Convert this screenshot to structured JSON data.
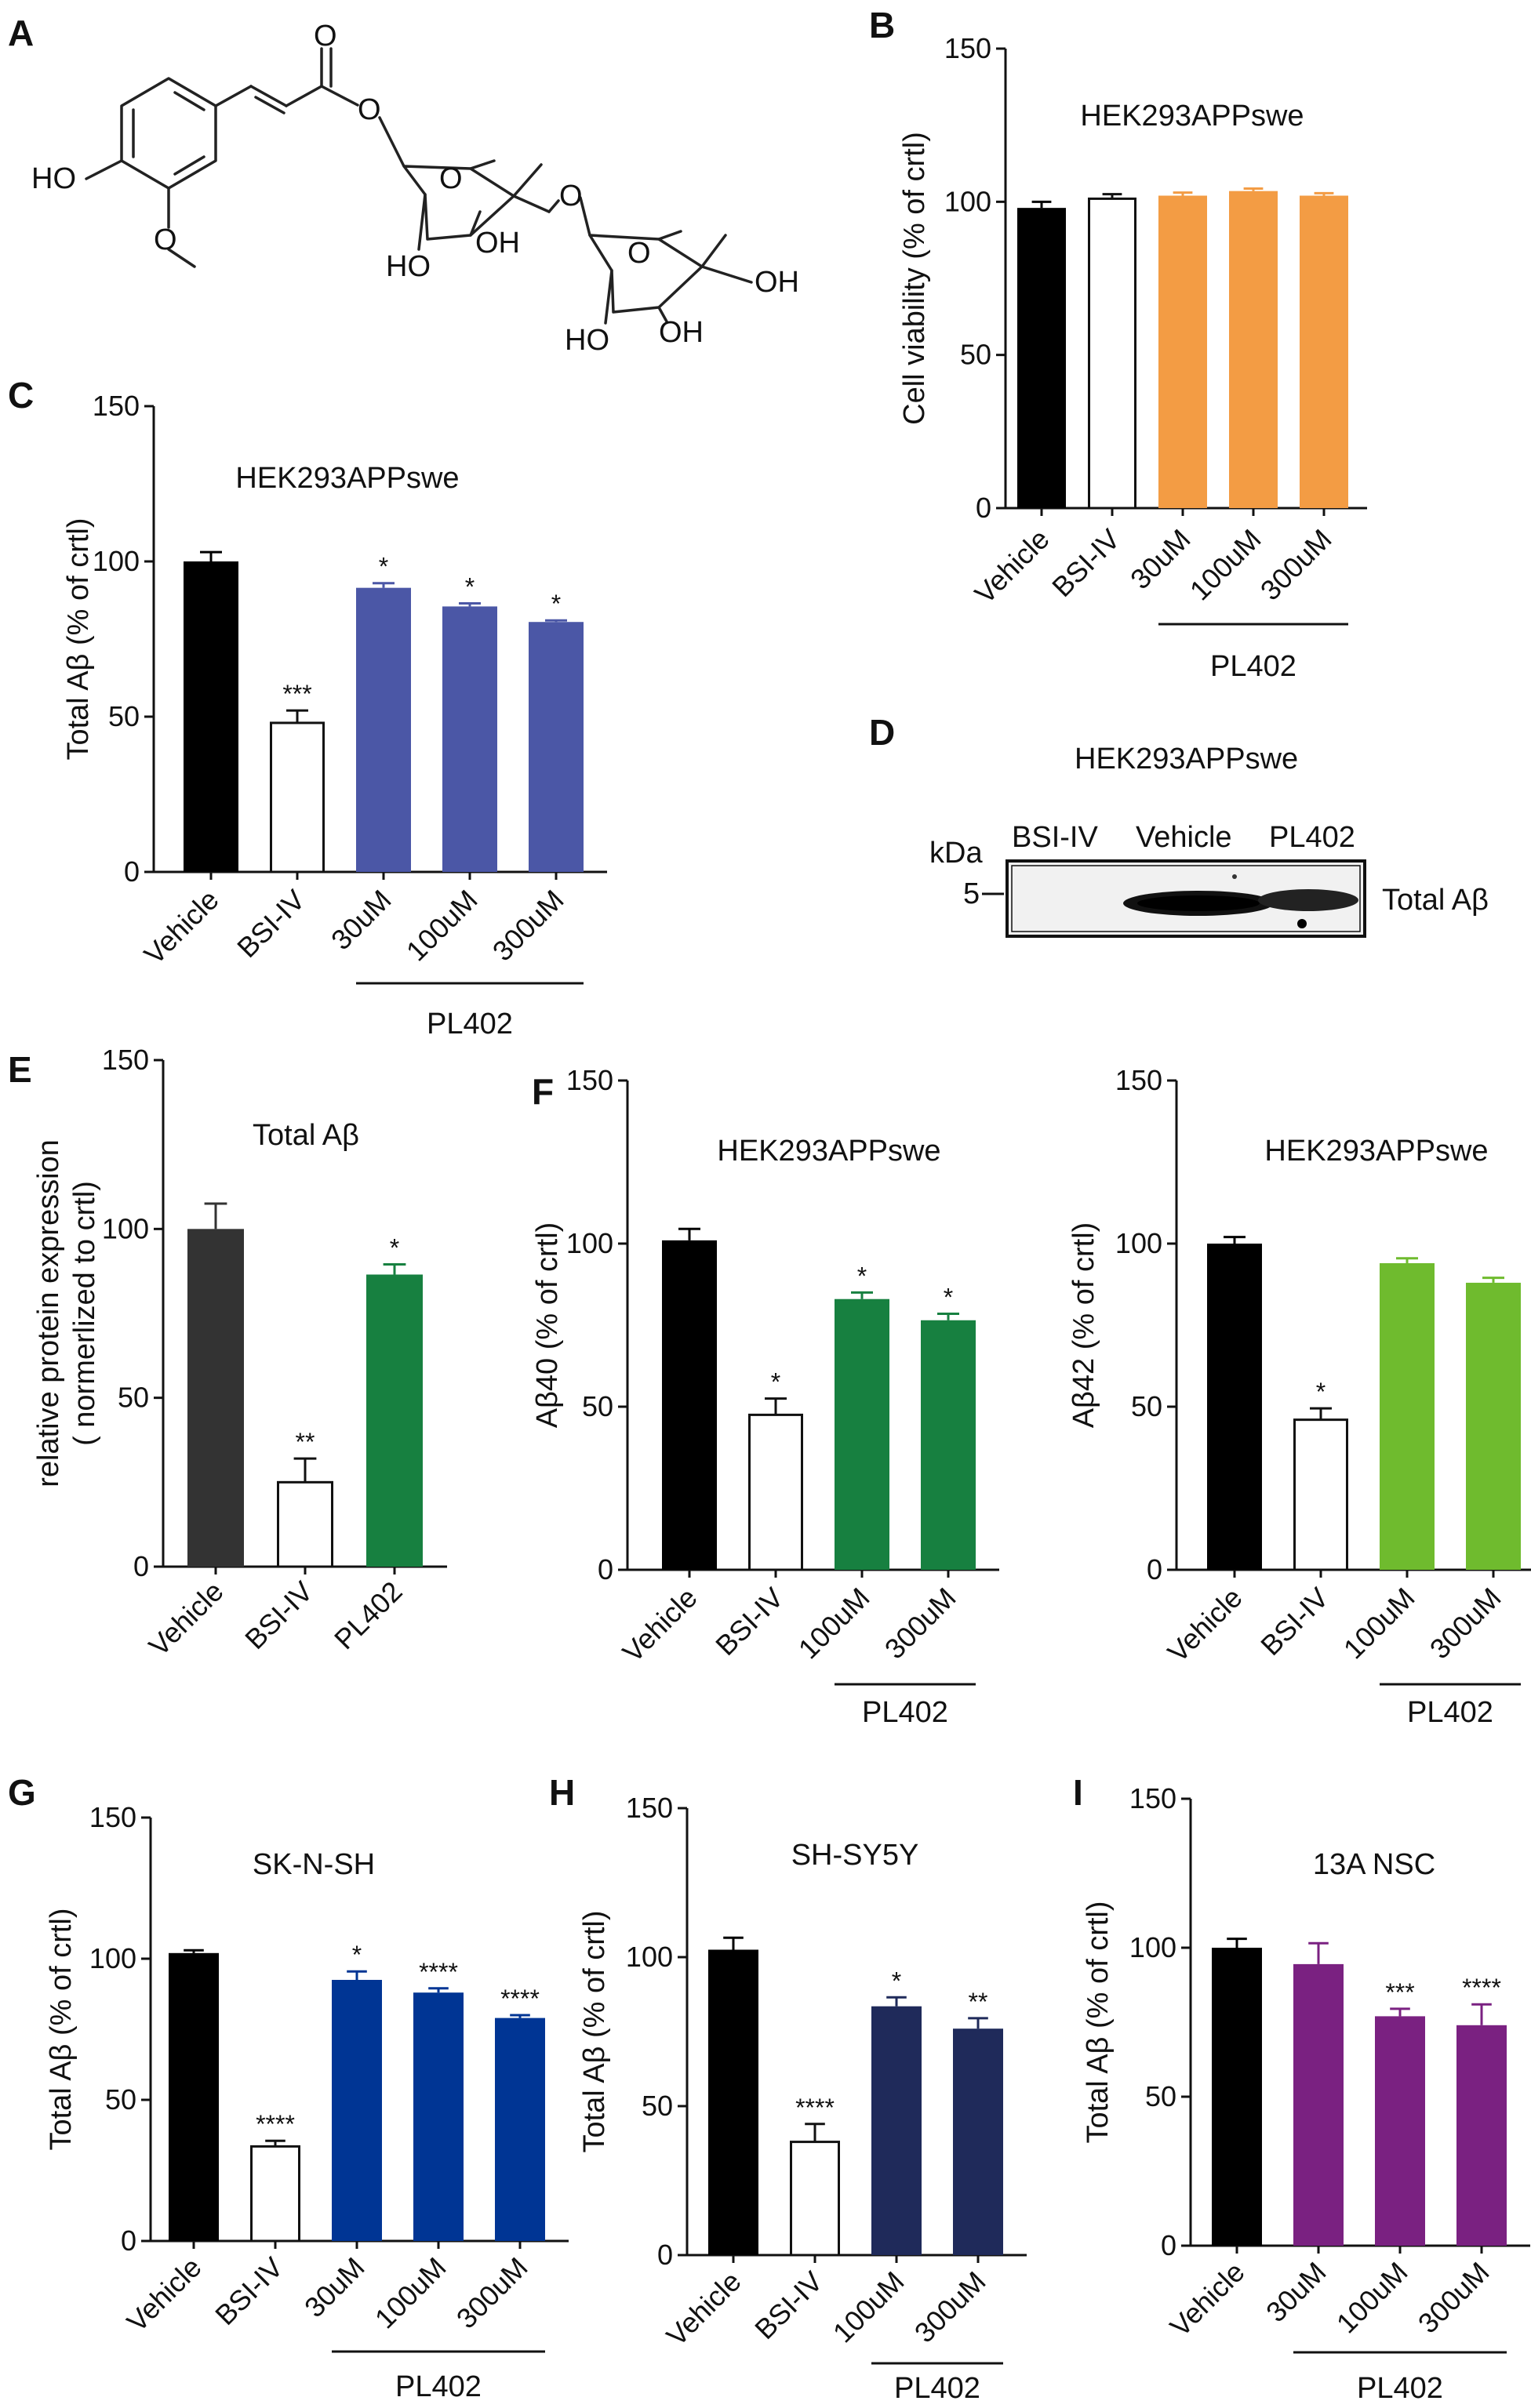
{
  "panel_labels": [
    "A",
    "B",
    "C",
    "D",
    "E",
    "F",
    "G",
    "H",
    "I"
  ],
  "colors": {
    "vehicle": "#000000",
    "orange": "#F39C44",
    "blue_c": "#4B57A6",
    "dark_e": "#333333",
    "green_dark": "#178040",
    "green_light": "#6FBB2E",
    "blue_g": "#003594",
    "navy_h": "#1F2A5A",
    "purple_i": "#7A2181"
  },
  "molecule_labels": {
    "ho1": "HO",
    "ho2": "HO",
    "oh1": "OH",
    "oh2": "OH",
    "oh3": "OH",
    "ho3": "HO",
    "o_ring1": "O",
    "o_ring2": "O",
    "o_ester": "O",
    "o_link": "O",
    "o_carbonyl": "O",
    "o_methoxy": "O"
  },
  "western_blot": {
    "title": "HEK293APPswe",
    "kda_label": "kDa",
    "marker": "5",
    "lanes": [
      "BSI-IV",
      "Vehicle",
      "PL402"
    ],
    "band_label": "Total Aβ"
  },
  "chart_data": [
    {
      "panel": "B",
      "type": "bar",
      "title": "HEK293APPswe",
      "ylabel": "Cell viability (% of crtl)",
      "ylim": [
        0,
        150
      ],
      "yticks": [
        "0",
        "50",
        "100",
        "150"
      ],
      "categories": [
        "Vehicle",
        "BSI-IV",
        "30uM",
        "100uM",
        "300uM"
      ],
      "values": [
        98,
        101,
        102,
        103.5,
        102
      ],
      "errors": [
        2,
        1.5,
        1,
        0.8,
        0.8
      ],
      "colors": [
        "#000000",
        "open",
        "#F39C44",
        "#F39C44",
        "#F39C44"
      ],
      "significance": [
        "",
        "",
        "",
        "",
        ""
      ],
      "group_label": "PL402"
    },
    {
      "panel": "C",
      "type": "bar",
      "title": "HEK293APPswe",
      "ylabel": "Total Aβ (% of crtl)",
      "ylim": [
        0,
        150
      ],
      "yticks": [
        "0",
        "50",
        "100",
        "150"
      ],
      "categories": [
        "Vehicle",
        "BSI-IV",
        "30uM",
        "100uM",
        "300uM"
      ],
      "values": [
        100,
        48,
        91.5,
        85.5,
        80.5
      ],
      "errors": [
        3,
        4,
        1.5,
        1,
        0.5
      ],
      "colors": [
        "#000000",
        "open",
        "#4B57A6",
        "#4B57A6",
        "#4B57A6"
      ],
      "significance": [
        "",
        "***",
        "*",
        "*",
        "*"
      ],
      "group_label": "PL402"
    },
    {
      "panel": "E",
      "type": "bar",
      "title": "Total Aβ",
      "ylabel": "relative protein expression",
      "ylabel2": "( normerlized to crtl)",
      "ylim": [
        0,
        150
      ],
      "yticks": [
        "0",
        "50",
        "100",
        "150"
      ],
      "categories": [
        "Vehicle",
        "BSI-IV",
        "PL402"
      ],
      "values": [
        100,
        25,
        86.5
      ],
      "errors": [
        7.5,
        7,
        3
      ],
      "colors": [
        "#333333",
        "open",
        "#178040"
      ],
      "significance": [
        "",
        "**",
        "*"
      ],
      "group_label": ""
    },
    {
      "panel": "F",
      "type": "bar",
      "title": "HEK293APPswe",
      "ylabel": "Aβ40 (% of crtl)",
      "ylim": [
        0,
        150
      ],
      "yticks": [
        "0",
        "50",
        "100",
        "150"
      ],
      "categories": [
        "Vehicle",
        "BSI-IV",
        "100uM",
        "300uM"
      ],
      "values": [
        101,
        47.5,
        83,
        76.5
      ],
      "errors": [
        3.5,
        5,
        2,
        2
      ],
      "colors": [
        "#000000",
        "open",
        "#178040",
        "#178040"
      ],
      "significance": [
        "",
        "*",
        "*",
        "*"
      ],
      "group_label": "PL402"
    },
    {
      "panel": "F2",
      "type": "bar",
      "title": "HEK293APPswe",
      "ylabel": "Aβ42 (% of crtl)",
      "ylim": [
        0,
        150
      ],
      "yticks": [
        "0",
        "50",
        "100",
        "150"
      ],
      "categories": [
        "Vehicle",
        "BSI-IV",
        "100uM",
        "300uM"
      ],
      "values": [
        100,
        46,
        94,
        88
      ],
      "errors": [
        2,
        3.5,
        1.5,
        1.5
      ],
      "colors": [
        "#000000",
        "open",
        "#6FBB2E",
        "#6FBB2E"
      ],
      "significance": [
        "",
        "*",
        "",
        ""
      ],
      "group_label": "PL402"
    },
    {
      "panel": "G",
      "type": "bar",
      "title": "SK-N-SH",
      "ylabel": "Total Aβ (% of crtl)",
      "ylim": [
        0,
        150
      ],
      "yticks": [
        "0",
        "50",
        "100",
        "150"
      ],
      "categories": [
        "Vehicle",
        "BSI-IV",
        "30uM",
        "100uM",
        "300uM"
      ],
      "values": [
        102,
        33.5,
        92.5,
        88,
        79
      ],
      "errors": [
        1,
        2,
        3,
        1.5,
        1
      ],
      "colors": [
        "#000000",
        "open",
        "#003594",
        "#003594",
        "#003594"
      ],
      "significance": [
        "",
        "****",
        "*",
        "****",
        "****"
      ],
      "group_label": "PL402"
    },
    {
      "panel": "H",
      "type": "bar",
      "title": "SH-SY5Y",
      "ylabel": "Total Aβ (% of crtl)",
      "ylim": [
        0,
        150
      ],
      "yticks": [
        "0",
        "50",
        "100",
        "150"
      ],
      "categories": [
        "Vehicle",
        "BSI-IV",
        "100uM",
        "300uM"
      ],
      "values": [
        102.5,
        38,
        83.5,
        76
      ],
      "errors": [
        4,
        6,
        3,
        3.5
      ],
      "colors": [
        "#000000",
        "open",
        "#1F2A5A",
        "#1F2A5A"
      ],
      "significance": [
        "",
        "****",
        "*",
        "**"
      ],
      "group_label": "PL402"
    },
    {
      "panel": "I",
      "type": "bar",
      "title": "13A NSC",
      "ylabel": "Total Aβ (% of crtl)",
      "ylim": [
        0,
        150
      ],
      "yticks": [
        "0",
        "50",
        "100",
        "150"
      ],
      "categories": [
        "Vehicle",
        "30uM",
        "100uM",
        "300uM"
      ],
      "values": [
        100,
        94.5,
        77,
        74
      ],
      "errors": [
        3,
        7,
        2.5,
        7
      ],
      "colors": [
        "#000000",
        "#7A2181",
        "#7A2181",
        "#7A2181"
      ],
      "significance": [
        "",
        "",
        "***",
        "****"
      ],
      "group_label": "PL402"
    }
  ]
}
